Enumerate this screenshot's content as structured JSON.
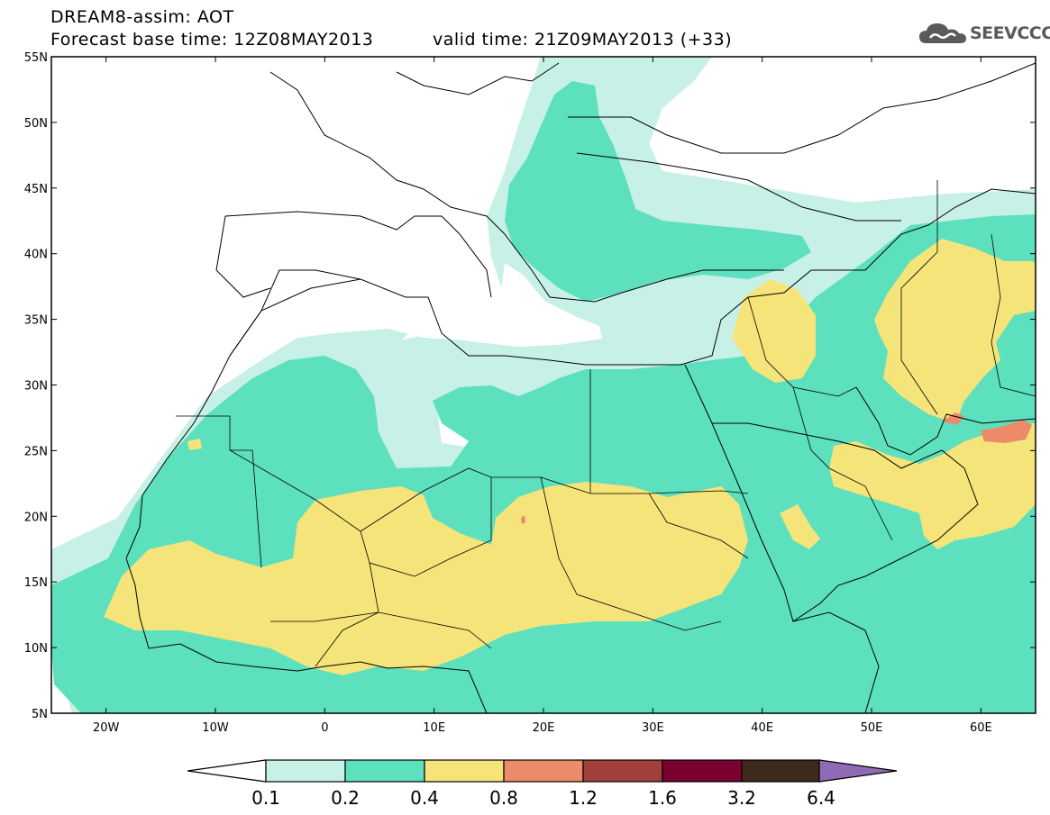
{
  "header": {
    "line1": "DREAM8-assim: AOT",
    "line2": "Forecast base time: 12Z08MAY2013",
    "line2b": "valid time: 21Z09MAY2013 (+33)"
  },
  "logo": {
    "text": "SEEVCCC",
    "icon": "cloud-logo-icon"
  },
  "map": {
    "lat_labels": [
      "55N",
      "50N",
      "45N",
      "40N",
      "35N",
      "30N",
      "25N",
      "20N",
      "15N",
      "10N",
      "5N"
    ],
    "lon_labels": [
      "20W",
      "10W",
      "0",
      "10E",
      "20E",
      "30E",
      "40E",
      "50E",
      "60E"
    ],
    "lon_range": [
      -25,
      65
    ],
    "lat_range": [
      5,
      55
    ]
  },
  "colorbar": {
    "labels": [
      "0.1",
      "0.2",
      "0.4",
      "0.8",
      "1.2",
      "1.6",
      "3.2",
      "6.4"
    ],
    "colors": [
      "#ffffff",
      "#c7f0e7",
      "#5ce0be",
      "#f5e479",
      "#eb8b6a",
      "#a0403a",
      "#7a0030",
      "#3d2a1a",
      "#8e6bb4"
    ]
  }
}
